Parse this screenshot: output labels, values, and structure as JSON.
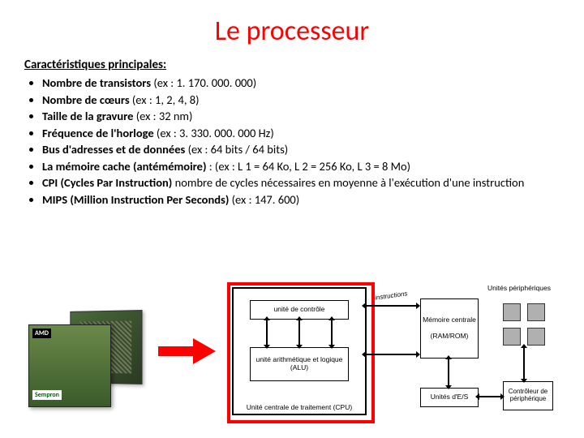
{
  "title": "Le processeur",
  "section_heading": "Caractéristiques principales:",
  "bullets": [
    {
      "bold": "Nombre de transistors ",
      "rest": "(ex : 1. 170. 000. 000)"
    },
    {
      "bold": "Nombre de cœurs ",
      "rest": "(ex : 1, 2, 4, 8)"
    },
    {
      "bold": "Taille de la gravure ",
      "rest": "(ex : 32 nm)"
    },
    {
      "bold": "Fréquence de l'horloge ",
      "rest": "(ex : 3. 330. 000. 000 Hz)"
    },
    {
      "bold": "Bus d'adresses et de données ",
      "rest": "(ex : 64 bits / 64 bits)"
    },
    {
      "bold": "La mémoire cache (antémémoire) ",
      "rest": ": (ex : L 1 = 64 Ko, L 2 = 256 Ko, L 3 = 8 Mo)"
    },
    {
      "bold": "CPI (Cycles Par Instruction) ",
      "rest": "nombre de cycles nécessaires en moyenne à l'exécution d'une instruction"
    },
    {
      "bold": "MIPS  (Million Instruction Per Seconds) ",
      "rest": "(ex : 147. 600)"
    }
  ],
  "chip": {
    "brand": "AMD",
    "model": "Sempron"
  },
  "arrow_color": "#ff0000",
  "diagram": {
    "highlight_color": "#ff0000",
    "cpu": {
      "control": "unité de contrôle",
      "alu": "unité arithmétique et logique (ALU)",
      "label": "Unité centrale de traitement  (CPU)"
    },
    "instructions_label": "instructions",
    "memory": {
      "title": "Mémoire centrale",
      "sub": "(RAM/ROM)"
    },
    "io": "Unités d'E/S",
    "periph": {
      "title": "Unités périphériques",
      "controller": "Contrôleur de périphérique"
    },
    "colors": {
      "border": "#000000",
      "periph_fill": "#b0b0b0"
    }
  }
}
